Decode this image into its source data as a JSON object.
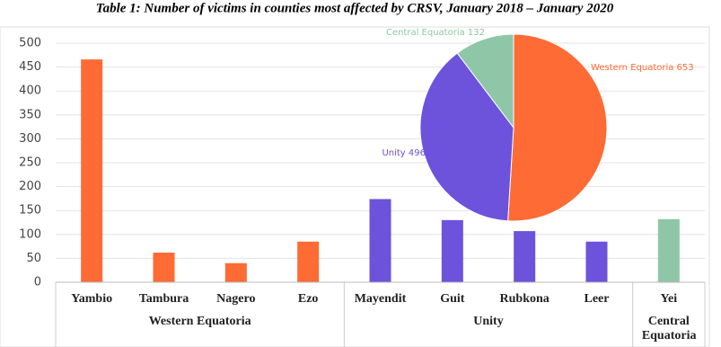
{
  "chart_data": [
    {
      "type": "bar",
      "title": "Table 1: Number of victims in counties most affected by CRSV, January 2018 – January 2020",
      "ylim": [
        0,
        500
      ],
      "yticks": [
        0,
        50,
        100,
        150,
        200,
        250,
        300,
        350,
        400,
        450,
        500
      ],
      "grid": true,
      "series": [
        {
          "name": "Western Equatoria",
          "color": "#ff6b35",
          "categories": [
            "Yambio",
            "Tambura",
            "Nagero",
            "Ezo"
          ],
          "values": [
            466,
            62,
            40,
            85
          ]
        },
        {
          "name": "Unity",
          "color": "#6d52dc",
          "categories": [
            "Mayendit",
            "Guit",
            "Rubkona",
            "Leer"
          ],
          "values": [
            174,
            130,
            107,
            85
          ]
        },
        {
          "name": "Central Equatoria",
          "color": "#8fc6a8",
          "categories": [
            "Yei"
          ],
          "values": [
            132
          ]
        }
      ]
    },
    {
      "type": "pie",
      "values": [
        653,
        496,
        132
      ],
      "value_labels": [
        "Western Equatoria 653",
        "Unity 496",
        "Central Equatoria 132"
      ],
      "colors": [
        "#ff6b35",
        "#6d52dc",
        "#8fc6a8"
      ]
    }
  ]
}
